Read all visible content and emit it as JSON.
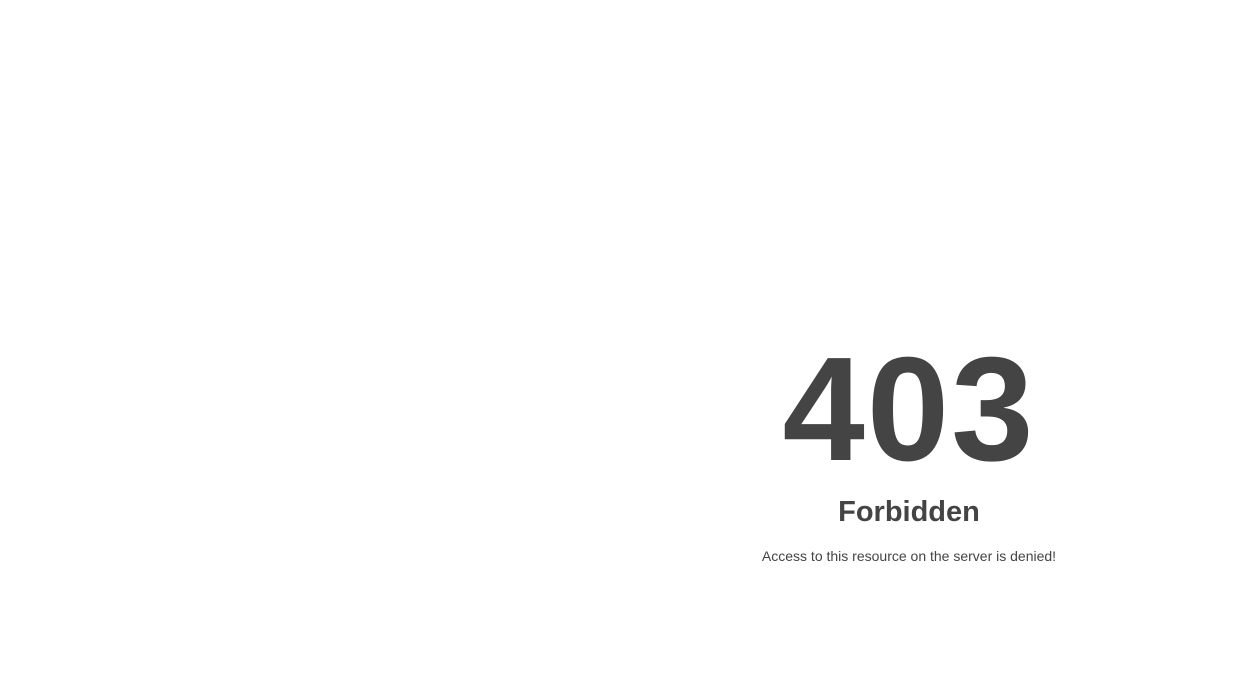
{
  "error": {
    "code": "403",
    "title": "Forbidden",
    "message": "Access to this resource on the server is denied!"
  },
  "colors": {
    "text": "#444444",
    "background": "#ffffff"
  }
}
